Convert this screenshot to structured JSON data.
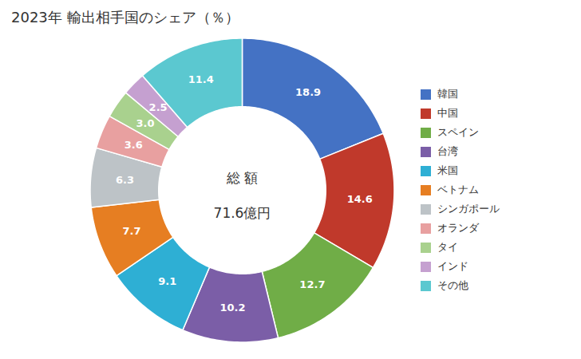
{
  "chart_data": {
    "type": "pie",
    "title": "2023年 輸出相手国のシェア（％）",
    "categories": [
      "韓国",
      "中国",
      "スペイン",
      "台湾",
      "米国",
      "ベトナム",
      "シンガポール",
      "オランダ",
      "タイ",
      "インド",
      "その他"
    ],
    "values": [
      18.9,
      14.6,
      12.7,
      10.2,
      9.1,
      7.7,
      6.3,
      3.6,
      3.0,
      2.5,
      11.4
    ],
    "value_labels": [
      "18.9",
      "14.6",
      "12.7",
      "10.2",
      "9.1",
      "7.7",
      "6.3",
      "3.6",
      "3.0",
      "2.5",
      "11.4"
    ],
    "colors": [
      "#4472C4",
      "#C0392B",
      "#70AD47",
      "#7B5EA7",
      "#2EAFD4",
      "#E67E22",
      "#BDC3C7",
      "#E8A0A0",
      "#A9D18E",
      "#C5A0D0",
      "#5BC8D0"
    ],
    "annotations": [
      "総 額",
      "71.6億円"
    ],
    "data_labels": true,
    "legend": "right"
  }
}
